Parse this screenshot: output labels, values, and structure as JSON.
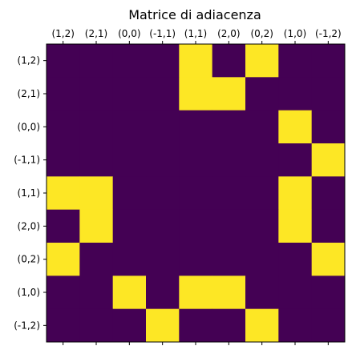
{
  "chart_data": {
    "type": "heatmap",
    "title": "Matrice di adiacenza",
    "x_tick_position": "top",
    "row_labels": [
      "(1,2)",
      "(2,1)",
      "(0,0)",
      "(-1,1)",
      "(1,1)",
      "(2,0)",
      "(0,2)",
      "(1,0)",
      "(-1,2)"
    ],
    "col_labels": [
      "(1,2)",
      "(2,1)",
      "(0,0)",
      "(-1,1)",
      "(1,1)",
      "(2,0)",
      "(0,2)",
      "(1,0)",
      "(-1,2)"
    ],
    "matrix": [
      [
        0,
        0,
        0,
        0,
        1,
        0,
        1,
        0,
        0
      ],
      [
        0,
        0,
        0,
        0,
        1,
        1,
        0,
        0,
        0
      ],
      [
        0,
        0,
        0,
        0,
        0,
        0,
        0,
        1,
        0
      ],
      [
        0,
        0,
        0,
        0,
        0,
        0,
        0,
        0,
        1
      ],
      [
        1,
        1,
        0,
        0,
        0,
        0,
        0,
        1,
        0
      ],
      [
        0,
        1,
        0,
        0,
        0,
        0,
        0,
        1,
        0
      ],
      [
        1,
        0,
        0,
        0,
        0,
        0,
        0,
        0,
        1
      ],
      [
        0,
        0,
        1,
        0,
        1,
        1,
        0,
        0,
        0
      ],
      [
        0,
        0,
        0,
        1,
        0,
        0,
        1,
        0,
        0
      ]
    ],
    "value_range": [
      0,
      1
    ],
    "colormap": {
      "0": "#440154",
      "1": "#fde725"
    },
    "grid": false
  }
}
